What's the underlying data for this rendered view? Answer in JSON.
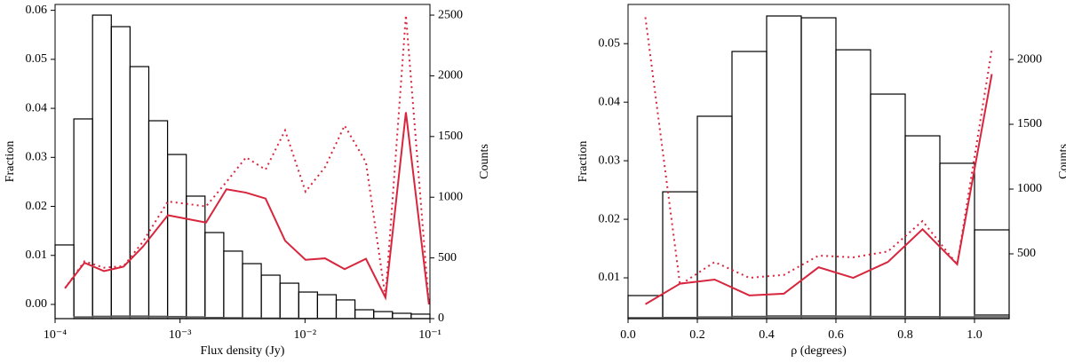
{
  "chart_data": [
    {
      "type": "histogram",
      "xscale": "log",
      "xlabel": "Flux density (Jy)",
      "ylabel": "Fraction",
      "y2label": "Counts",
      "xlim": [
        0.0001,
        0.1
      ],
      "xticks": [
        {
          "value": 0.0001,
          "label": "10⁻⁴"
        },
        {
          "value": 0.001,
          "label": "10⁻³"
        },
        {
          "value": 0.01,
          "label": "10⁻²"
        },
        {
          "value": 0.1,
          "label": "10⁻¹"
        }
      ],
      "ylim": [
        -0.0029,
        0.0612
      ],
      "yticks": [
        {
          "value": 0,
          "label": "0.00"
        },
        0.01,
        0.02,
        0.03,
        0.04,
        0.05,
        0.06
      ],
      "y2lim": [
        0,
        2588
      ],
      "y2ticks": [
        0,
        500,
        1000,
        1500,
        2000,
        2500
      ],
      "bins": [
        0.0001,
        0.0001413,
        0.0001995,
        0.0002818,
        0.0003981,
        0.0005623,
        0.0007943,
        0.001122,
        0.001585,
        0.002239,
        0.003162,
        0.004467,
        0.00631,
        0.008913,
        0.01259,
        0.01778,
        0.02512,
        0.03548,
        0.05012,
        0.07079,
        0.1
      ],
      "series": [
        {
          "axis": "y2",
          "color": "#000000",
          "fill": "none",
          "values": [
            607,
            1645,
            2500,
            2405,
            2076,
            1630,
            1352,
            1009,
            709,
            556,
            453,
            358,
            292,
            219,
            197,
            154,
            73,
            58,
            44,
            37
          ]
        },
        {
          "axis": "y2",
          "color": "#555555",
          "fill": "#777777",
          "values": [
            0,
            15,
            20,
            22,
            22,
            20,
            18,
            15,
            10,
            8,
            6,
            5,
            4,
            3,
            3,
            2,
            2,
            2,
            1,
            1
          ]
        }
      ],
      "line_x": [
        0.00012,
        0.000172,
        0.000246,
        0.000353,
        0.000505,
        0.000799,
        0.001615,
        0.002353,
        0.003374,
        0.004835,
        0.00693,
        0.0101,
        0.01447,
        0.02075,
        0.03074,
        0.04405,
        0.0642,
        0.0982
      ],
      "lines": [
        {
          "color": "#d7263d",
          "style": "solid",
          "values": [
            0.0033,
            0.0085,
            0.0068,
            0.0077,
            0.0118,
            0.0182,
            0.0167,
            0.0235,
            0.0228,
            0.0216,
            0.013,
            0.0091,
            0.0094,
            0.0072,
            0.0093,
            0.0014,
            0.0392,
            0.0
          ]
        },
        {
          "color": "#d7263d",
          "style": "dotted",
          "values": [
            0.0033,
            0.0088,
            0.0075,
            0.0078,
            0.0128,
            0.021,
            0.02,
            0.025,
            0.03,
            0.0275,
            0.0355,
            0.023,
            0.028,
            0.0365,
            0.029,
            0.0014,
            0.059,
            0.0
          ]
        }
      ]
    },
    {
      "type": "histogram",
      "xscale": "linear",
      "xlabel": "ρ (degrees)",
      "ylabel": "Fraction",
      "y2label": "Counts",
      "xlim": [
        0,
        1.1
      ],
      "xticks": [
        {
          "value": 0,
          "label": "0.0"
        },
        0.2,
        0.4,
        0.6,
        0.8,
        {
          "value": 1,
          "label": "1.0"
        }
      ],
      "ylim": [
        0.00303,
        0.0567
      ],
      "yticks": [
        0.01,
        0.02,
        0.03,
        0.04,
        0.05
      ],
      "y2lim": [
        0,
        2425
      ],
      "y2ticks": [
        500,
        1000,
        1500,
        2000
      ],
      "bins": [
        0,
        0.1,
        0.2,
        0.3,
        0.4,
        0.5,
        0.6,
        0.7,
        0.8,
        0.9,
        1.0,
        1.1
      ],
      "series": [
        {
          "axis": "y2",
          "color": "#000000",
          "fill": "none",
          "values": [
            178,
            979,
            1562,
            2062,
            2336,
            2322,
            2075,
            1733,
            1411,
            1199,
            685
          ]
        },
        {
          "axis": "y2",
          "color": "#555555",
          "fill": "#777777",
          "values": [
            8,
            10,
            14,
            18,
            22,
            22,
            20,
            18,
            16,
            14,
            30
          ]
        }
      ],
      "line_x": [
        0.05,
        0.15,
        0.25,
        0.35,
        0.45,
        0.55,
        0.65,
        0.75,
        0.85,
        0.95,
        1.05
      ],
      "lines": [
        {
          "color": "#d7263d",
          "style": "solid",
          "values": [
            0.0055,
            0.009,
            0.0097,
            0.007,
            0.0073,
            0.0118,
            0.01,
            0.0127,
            0.0183,
            0.0123,
            0.0448
          ]
        },
        {
          "color": "#d7263d",
          "style": "dotted",
          "values": [
            0.0545,
            0.0088,
            0.0127,
            0.01,
            0.0105,
            0.0138,
            0.0135,
            0.0145,
            0.0197,
            0.0123,
            0.049
          ]
        }
      ]
    }
  ]
}
